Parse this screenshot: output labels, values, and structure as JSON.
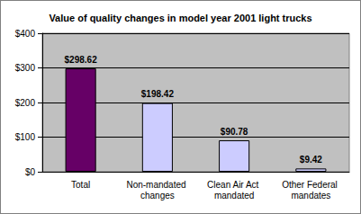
{
  "chart_data": {
    "type": "bar",
    "title": "Value of quality changes in model year 2001 light trucks",
    "categories": [
      "Total",
      "Non-mandated changes",
      "Clean Air Act mandated",
      "Other Federal mandates"
    ],
    "values": [
      298.62,
      198.42,
      90.78,
      9.42
    ],
    "value_labels": [
      "$298.62",
      "$198.42",
      "$90.78",
      "$9.42"
    ],
    "colors": [
      "#660066",
      "#ccccff",
      "#ccccff",
      "#ccccff"
    ],
    "ylim": [
      0,
      400
    ],
    "yticks": [
      {
        "value": 0,
        "label": "$0"
      },
      {
        "value": 100,
        "label": "$100"
      },
      {
        "value": 200,
        "label": "$200"
      },
      {
        "value": 300,
        "label": "$300"
      },
      {
        "value": 400,
        "label": "$400"
      }
    ],
    "grid": true,
    "data_labels": true
  }
}
